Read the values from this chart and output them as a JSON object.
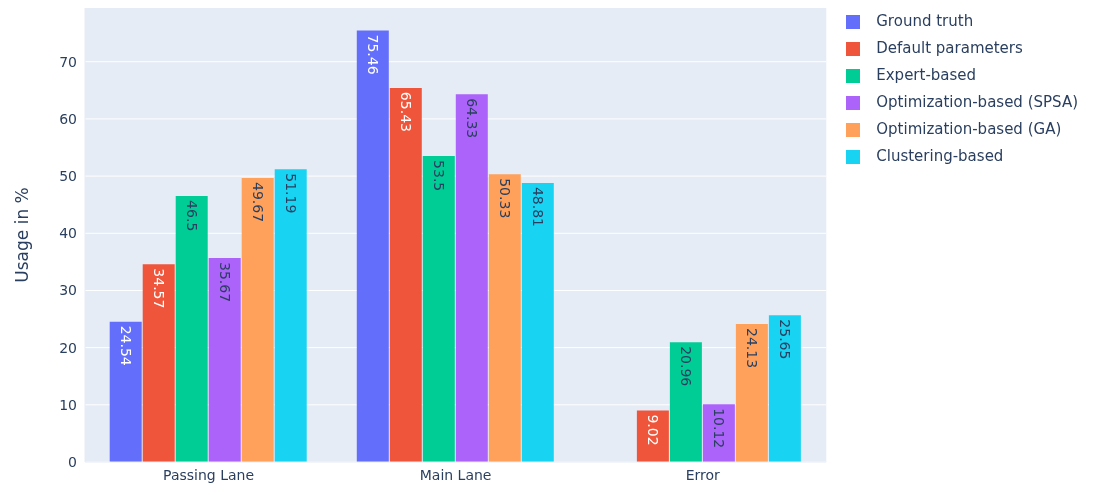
{
  "chart_data": {
    "type": "bar",
    "ylabel": "Usage in %",
    "categories": [
      "Passing Lane",
      "Main Lane",
      "Error"
    ],
    "series": [
      {
        "name": "Ground truth",
        "color": "#636efa",
        "values": [
          24.54,
          75.46,
          null
        ]
      },
      {
        "name": "Default parameters",
        "color": "#ef553b",
        "values": [
          34.57,
          65.43,
          9.02
        ]
      },
      {
        "name": "Expert-based",
        "color": "#00cc96",
        "values": [
          46.5,
          53.5,
          20.96
        ]
      },
      {
        "name": "Optimization-based (SPSA)",
        "color": "#ab63fa",
        "values": [
          35.67,
          64.33,
          10.12
        ]
      },
      {
        "name": "Optimization-based (GA)",
        "color": "#ffa15a",
        "values": [
          49.67,
          50.33,
          24.13
        ]
      },
      {
        "name": "Clustering-based",
        "color": "#19d3f3",
        "values": [
          51.19,
          48.81,
          25.65
        ]
      }
    ],
    "ylim": [
      0,
      79.4
    ],
    "yticks": [
      0,
      10,
      20,
      30,
      40,
      50,
      60,
      70
    ],
    "grid": "y",
    "legend": "top right",
    "data_labels": true
  }
}
